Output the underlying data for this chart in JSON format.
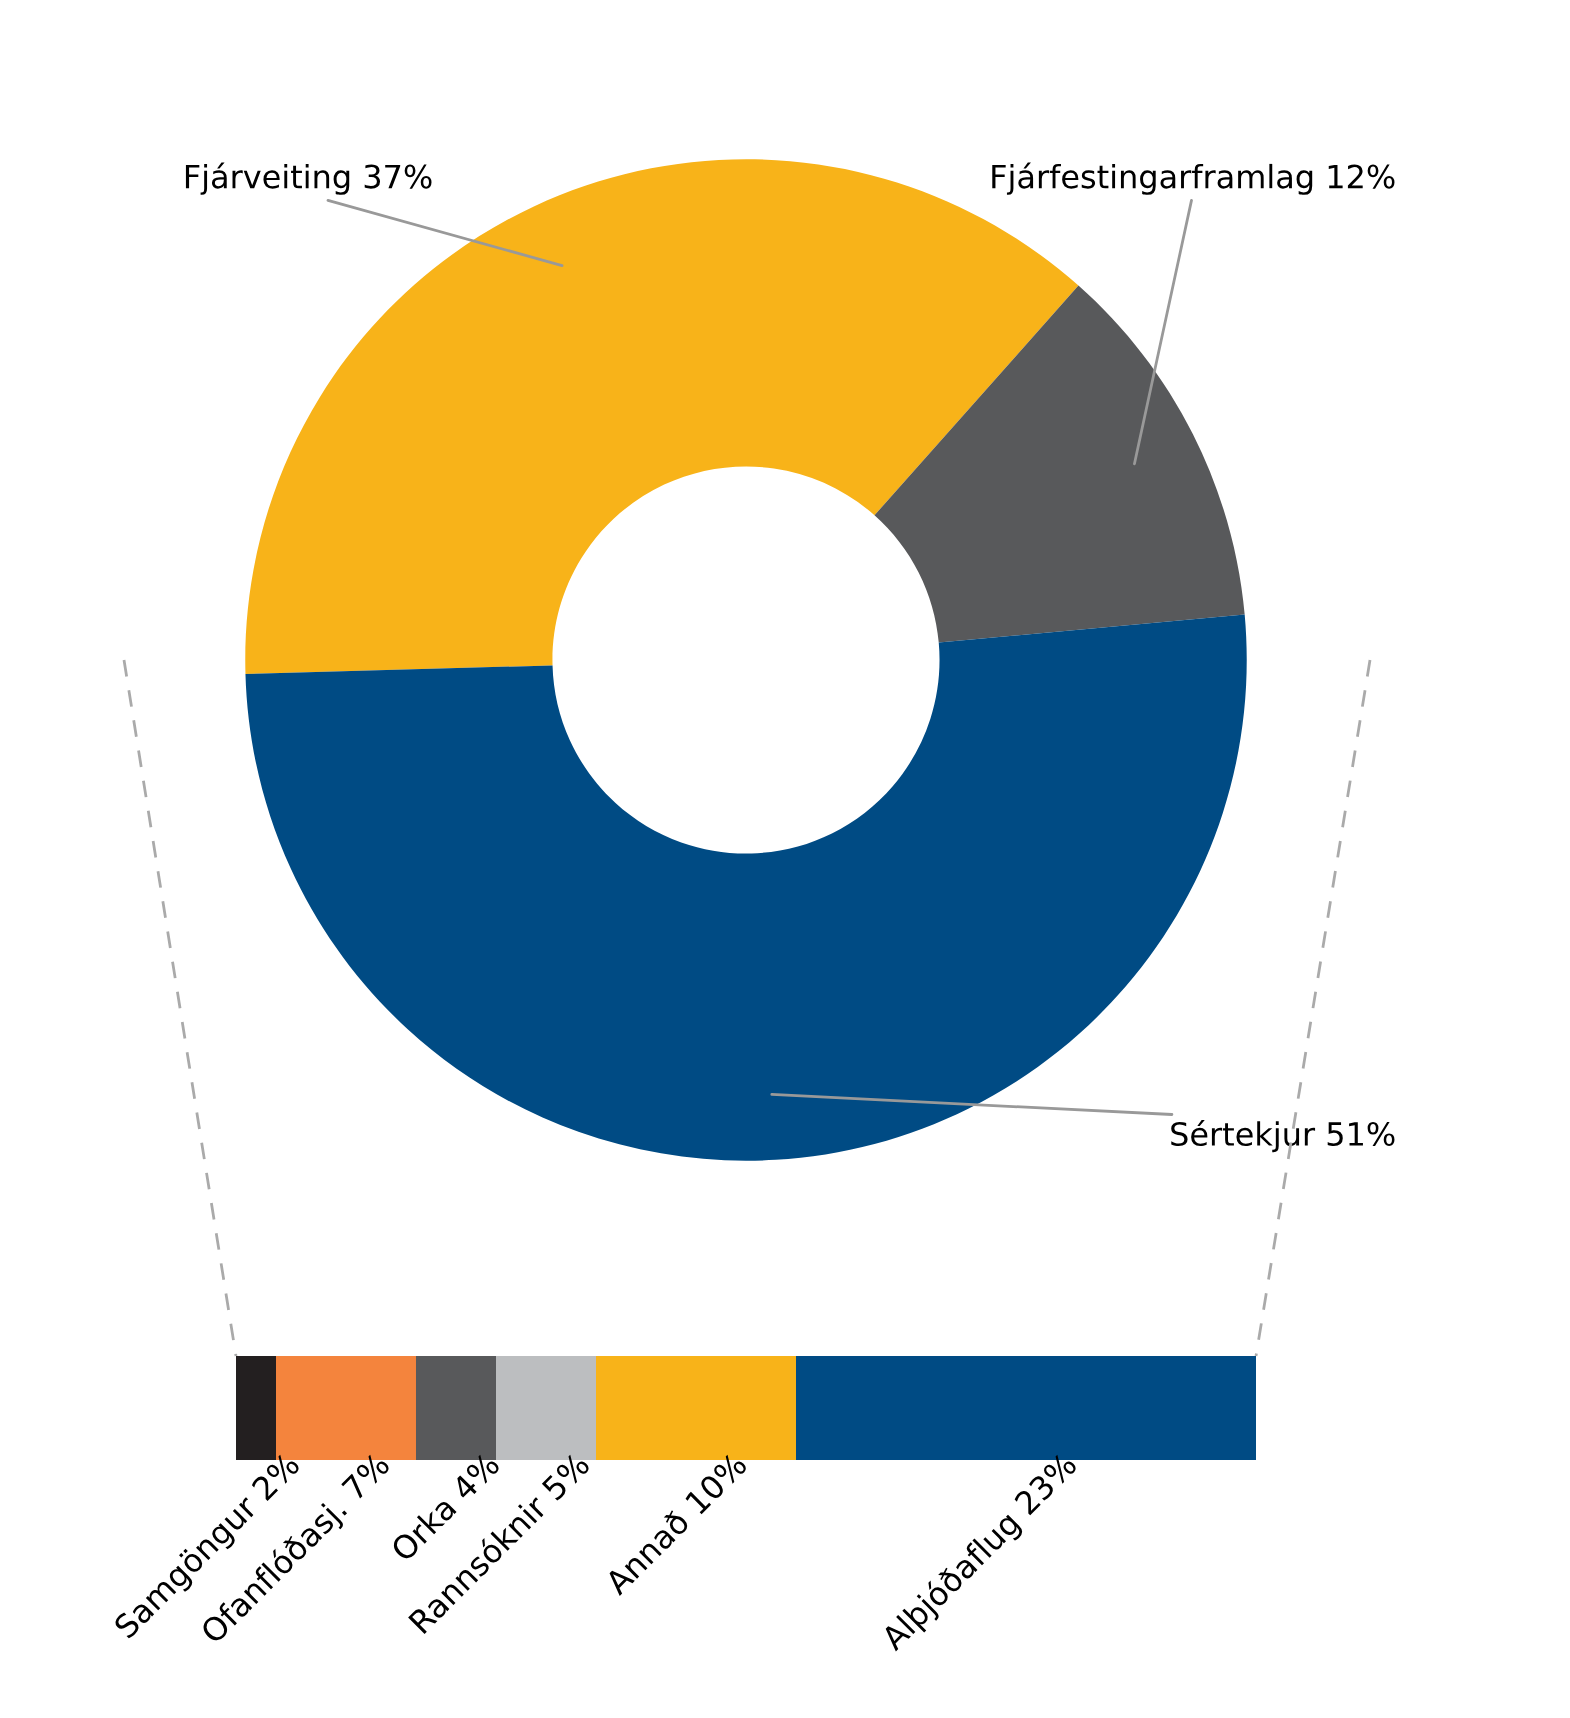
{
  "chart_data": [
    {
      "type": "donut",
      "categories": [
        "Fjárveiting",
        "Fjárfestingarframlag",
        "Sértekjur"
      ],
      "values": [
        37,
        12,
        51
      ],
      "value_labels": [
        "37%",
        "12%",
        "51%"
      ],
      "colors": [
        "#f8b319",
        "#58595b",
        "#004b84"
      ]
    },
    {
      "type": "bar",
      "orientation": "horizontal",
      "stacked": true,
      "categories": [
        null
      ],
      "series": [
        {
          "name": "Samgöngur",
          "color": "#231f20",
          "values": [
            2
          ],
          "value_labels": [
            "2%"
          ]
        },
        {
          "name": "Ofanflóðasj.",
          "color": "#f4843d",
          "values": [
            7
          ],
          "value_labels": [
            "7%"
          ]
        },
        {
          "name": "Orka",
          "color": "#58595b",
          "values": [
            4
          ],
          "value_labels": [
            "4%"
          ]
        },
        {
          "name": "Rannsóknir",
          "color": "#bcbec0",
          "values": [
            5
          ],
          "value_labels": [
            "5%"
          ]
        },
        {
          "name": "Annað",
          "color": "#f8b319",
          "values": [
            10
          ],
          "value_labels": [
            "10%"
          ]
        },
        {
          "name": "Alþjóðaflug",
          "color": "#004b84",
          "values": [
            23
          ],
          "value_labels": [
            "23%"
          ]
        }
      ]
    }
  ]
}
